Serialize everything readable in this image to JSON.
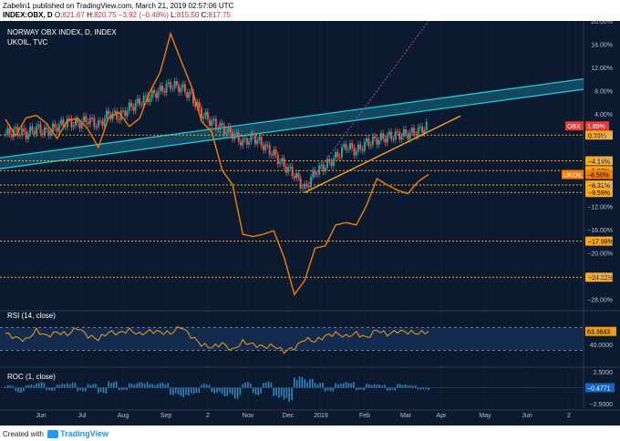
{
  "header": {
    "publish_line": "Zabelin1 published on TradingView.com, March 21, 2019 02:57:06 UTC",
    "symbol": "INDEX:OBX, D",
    "o_label": "O:",
    "o_value": "821.67",
    "h_label": "H:",
    "h_value": "820.75",
    "change": "−3.92 (−0.48%)",
    "l_label": "L:",
    "l_value": "815.50",
    "c_label": "C:",
    "c_value": "817.75"
  },
  "legend": {
    "main_title": "NORWAY OBX INDEX, D, INDEX",
    "overlay_title": "UKOIL, TVC",
    "rsi_title": "RSI (14, close)",
    "roc_title": "ROC (1, close)"
  },
  "colors": {
    "background": "#0b1a2e",
    "grid": "#1f3048",
    "candle_up": "#26a69a",
    "candle_down": "#ef5350",
    "overlay": "#f57c00",
    "channel": "#26c6da",
    "trendline": "#f9a825",
    "level": "#f9a825",
    "projection": "#ab47bc",
    "rsi": "#f39c12",
    "roc": "#2e86c1",
    "axis_text": "#b8c2cc"
  },
  "right_axis": {
    "main_ticks": [
      "20.00%",
      "16.00%",
      "12.00%",
      "8.00%",
      "4.00%",
      "0.00%",
      "−4.00%",
      "−8.00%",
      "−12.00%",
      "−16.00%",
      "−20.00%",
      "−24.00%",
      "−28.00%"
    ],
    "rsi_ticks": [
      "40.0000"
    ],
    "roc_ticks": [
      "2.5000",
      "−2.5000"
    ]
  },
  "level_labels": [
    "0.30%",
    "−4.14%",
    "−5.82%",
    "−8.31%",
    "−9.59%",
    "−17.99%",
    "−24.22%"
  ],
  "price_badges": {
    "obx_label": "OBX",
    "obx_value": "1.89%",
    "ukoil_label": "UKOIL",
    "ukoil_value": "−6.50%"
  },
  "rsi_value": "63.3643",
  "roc_value": "−0.4771",
  "x_axis": [
    "Jun",
    "Jul",
    "Aug",
    "Sep",
    "2",
    "Nov",
    "Dec",
    "2019",
    "Feb",
    "Mar",
    "Apr",
    "May",
    "Jun",
    "2"
  ],
  "chart_data": {
    "type": "line",
    "x_labels": [
      "Jun",
      "Jul",
      "Aug",
      "Sep",
      "2",
      "Nov",
      "Dec",
      "2019",
      "Feb",
      "Mar",
      "Apr",
      "May",
      "Jun",
      "2"
    ],
    "y_range": [
      -30,
      20
    ],
    "series": [
      {
        "name": "NORWAY OBX INDEX",
        "values": [
          0.5,
          1.0,
          0.5,
          1.5,
          0.8,
          1.8,
          2.6,
          2.2,
          3.0,
          2.0,
          4.0,
          3.5,
          5.0,
          6.0,
          7.0,
          8.0,
          9.0,
          8.5,
          7.0,
          4.0,
          2.5,
          1.5,
          0.5,
          -1.0,
          0.0,
          -1.5,
          -3.0,
          -5.0,
          -6.5,
          -9.0,
          -6.0,
          -5.0,
          -3.5,
          -1.5,
          -2.5,
          -1.0,
          -0.5,
          0.0,
          0.3,
          0.5,
          1.0,
          1.9
        ]
      },
      {
        "name": "UKOIL",
        "values": [
          3.0,
          1.0,
          2.5,
          4.5,
          1.5,
          0.5,
          2.0,
          4.0,
          0.5,
          -1.0,
          2.5,
          5.0,
          1.0,
          4.0,
          7.0,
          12.0,
          17.0,
          14.0,
          8.0,
          3.5,
          0.0,
          -5.0,
          -9.0,
          -16.0,
          -18.0,
          -16.0,
          -17.0,
          -20.0,
          -28.0,
          -24.0,
          -20.0,
          -18.0,
          -16.0,
          -14.0,
          -16.0,
          -11.0,
          -8.0,
          -7.5,
          -10.0,
          -9.0,
          -8.5,
          -6.5
        ]
      }
    ],
    "levels": [
      0.3,
      -4.14,
      -5.82,
      -8.31,
      -9.59,
      -17.99,
      -24.22
    ],
    "rsi": {
      "name": "RSI (14, close)",
      "upper": 70,
      "lower": 30,
      "last": 63.3643,
      "values": [
        60,
        52,
        48,
        65,
        55,
        62,
        58,
        70,
        55,
        50,
        62,
        60,
        66,
        58,
        64,
        62,
        60,
        72,
        55,
        40,
        35,
        42,
        30,
        45,
        40,
        36,
        38,
        28,
        34,
        50,
        46,
        55,
        60,
        54,
        60,
        52,
        66,
        58,
        64,
        62,
        60,
        63.36
      ]
    },
    "roc": {
      "name": "ROC (1, close)",
      "last": -0.4771,
      "values": [
        0.4,
        -0.8,
        0.5,
        0.9,
        -0.5,
        0.6,
        0.8,
        -0.6,
        0.6,
        -0.9,
        1.0,
        -0.4,
        0.7,
        0.9,
        0.6,
        0.8,
        -1.2,
        -1.5,
        -1.0,
        0.6,
        -0.9,
        -1.4,
        -1.8,
        0.9,
        -1.2,
        1.0,
        -1.6,
        -2.2,
        1.8,
        1.4,
        0.8,
        -0.6,
        0.7,
        0.9,
        -0.4,
        0.6,
        0.5,
        -0.5,
        0.6,
        0.4,
        -0.3,
        -0.48
      ]
    }
  }
}
